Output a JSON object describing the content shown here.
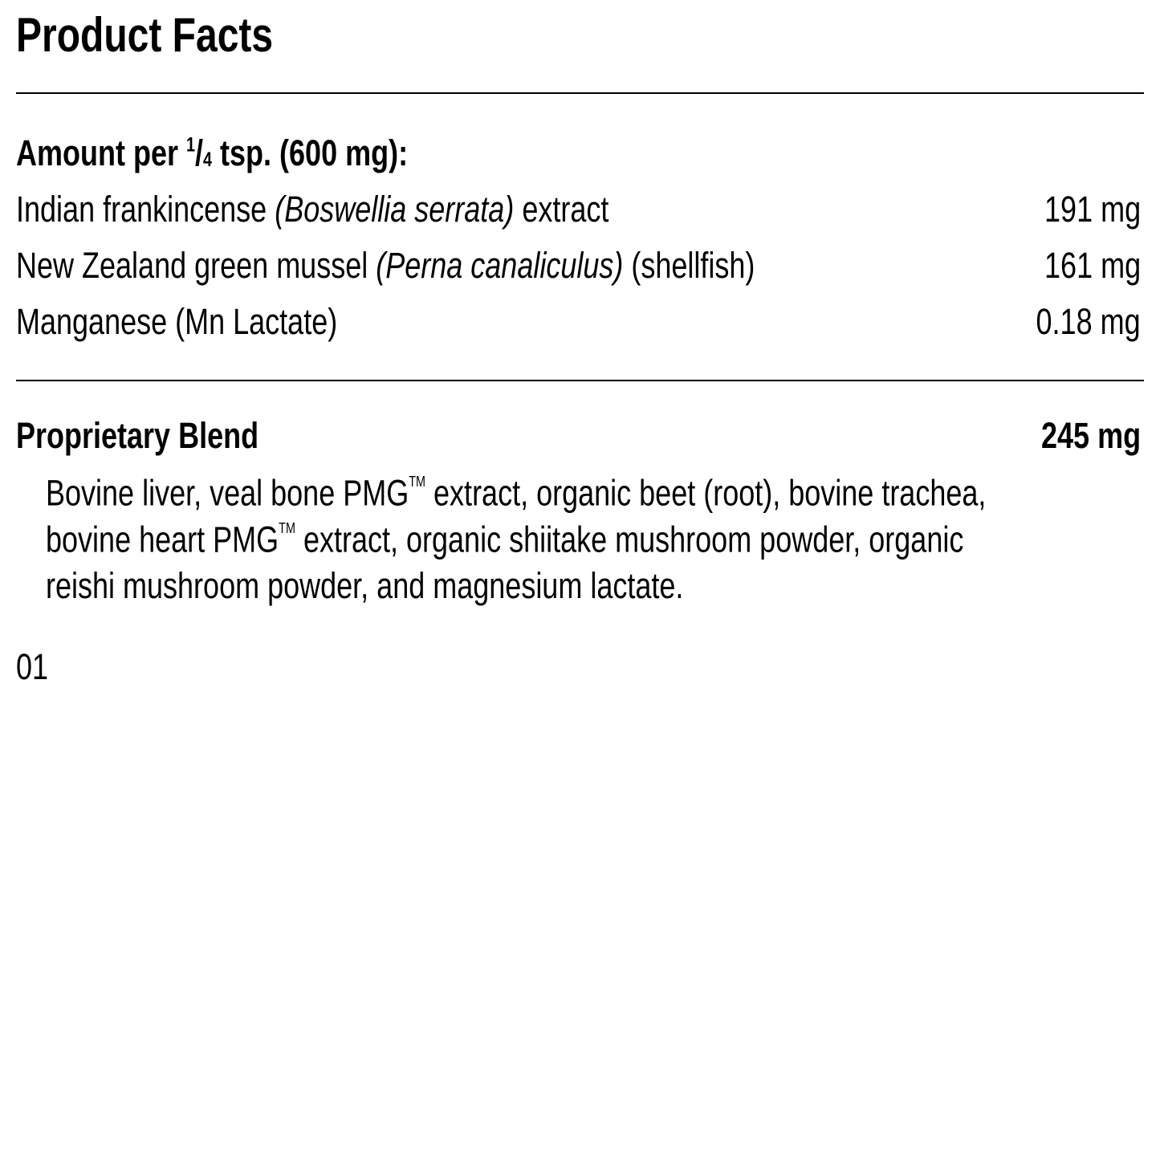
{
  "title": "Product Facts",
  "serving": {
    "prefix": "Amount per ",
    "frac_num": "1",
    "frac_den": "4",
    "suffix": " tsp. (600 mg):"
  },
  "ingredients": [
    {
      "name": "Indian frankincense ",
      "latin": "(Boswellia serrata)",
      "after": " extract",
      "amount": "191 mg"
    },
    {
      "name": "New Zealand green mussel ",
      "latin": "(Perna canaliculus)",
      "after": " (shellfish)",
      "amount": "161 mg"
    },
    {
      "name": "Manganese (Mn Lactate)",
      "latin": "",
      "after": "",
      "amount": "0.18 mg"
    }
  ],
  "blend": {
    "label": "Proprietary Blend",
    "amount": "245 mg",
    "line1a": "Bovine liver, veal bone PMG",
    "tm": "TM",
    "line1b": " extract, organic beet (root), bovine trachea,",
    "line2a": "bovine heart PMG",
    "line2b": " extract, organic shiitake mushroom powder, organic",
    "line3": "reishi mushroom powder, and magnesium lactate."
  },
  "code": "01"
}
